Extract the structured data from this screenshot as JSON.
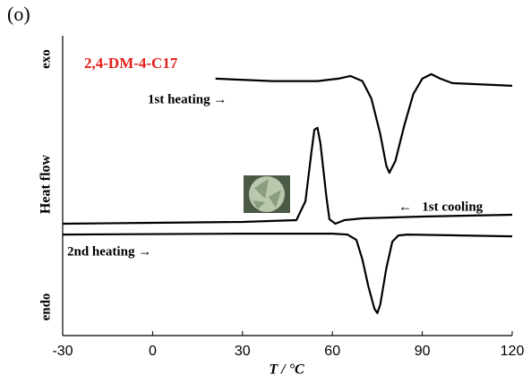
{
  "chart_data": {
    "type": "line",
    "panel_label": "(o)",
    "title": "2,4-DM-4-C17",
    "title_color": "#e3201b",
    "x_label": "T / °C",
    "y_label": "Heat flow",
    "y_top_label": "exo",
    "y_bottom_label": "endo",
    "xlim": [
      -30,
      120
    ],
    "xticks": [
      -30,
      0,
      30,
      60,
      90,
      120
    ],
    "ylim": [
      0,
      100
    ],
    "series": [
      {
        "name": "1st heating →",
        "color": "#000000",
        "x": [
          21,
          40,
          55,
          62,
          66,
          70,
          73,
          76,
          78,
          79,
          81,
          84,
          87,
          90,
          93,
          96,
          100,
          120
        ],
        "values": [
          85.7,
          84.9,
          84.9,
          85.7,
          86.6,
          84.9,
          79.1,
          67.2,
          56.7,
          54.3,
          58.2,
          70.1,
          80.6,
          85.7,
          87.2,
          85.7,
          84.2,
          83.3
        ]
      },
      {
        "name": "←   1st cooling",
        "color": "#000000",
        "x": [
          -30,
          0,
          30,
          48,
          51,
          53,
          54,
          55,
          56,
          58,
          59,
          61,
          64,
          70,
          90,
          120
        ],
        "values": [
          37.3,
          37.6,
          37.9,
          38.5,
          44.8,
          61.2,
          68.7,
          69.3,
          64.2,
          46.3,
          38.8,
          37.3,
          38.5,
          39.1,
          39.7,
          40.3
        ]
      },
      {
        "name": "2nd heating →",
        "color": "#000000",
        "x": [
          -30,
          30,
          60,
          65,
          68,
          70,
          72,
          74,
          75,
          76,
          78,
          80,
          82,
          85,
          120
        ],
        "values": [
          33.7,
          34.0,
          34.0,
          33.7,
          31.9,
          25.4,
          16.4,
          9.0,
          7.5,
          10.4,
          22.4,
          31.3,
          33.4,
          33.7,
          33.1
        ]
      }
    ]
  }
}
